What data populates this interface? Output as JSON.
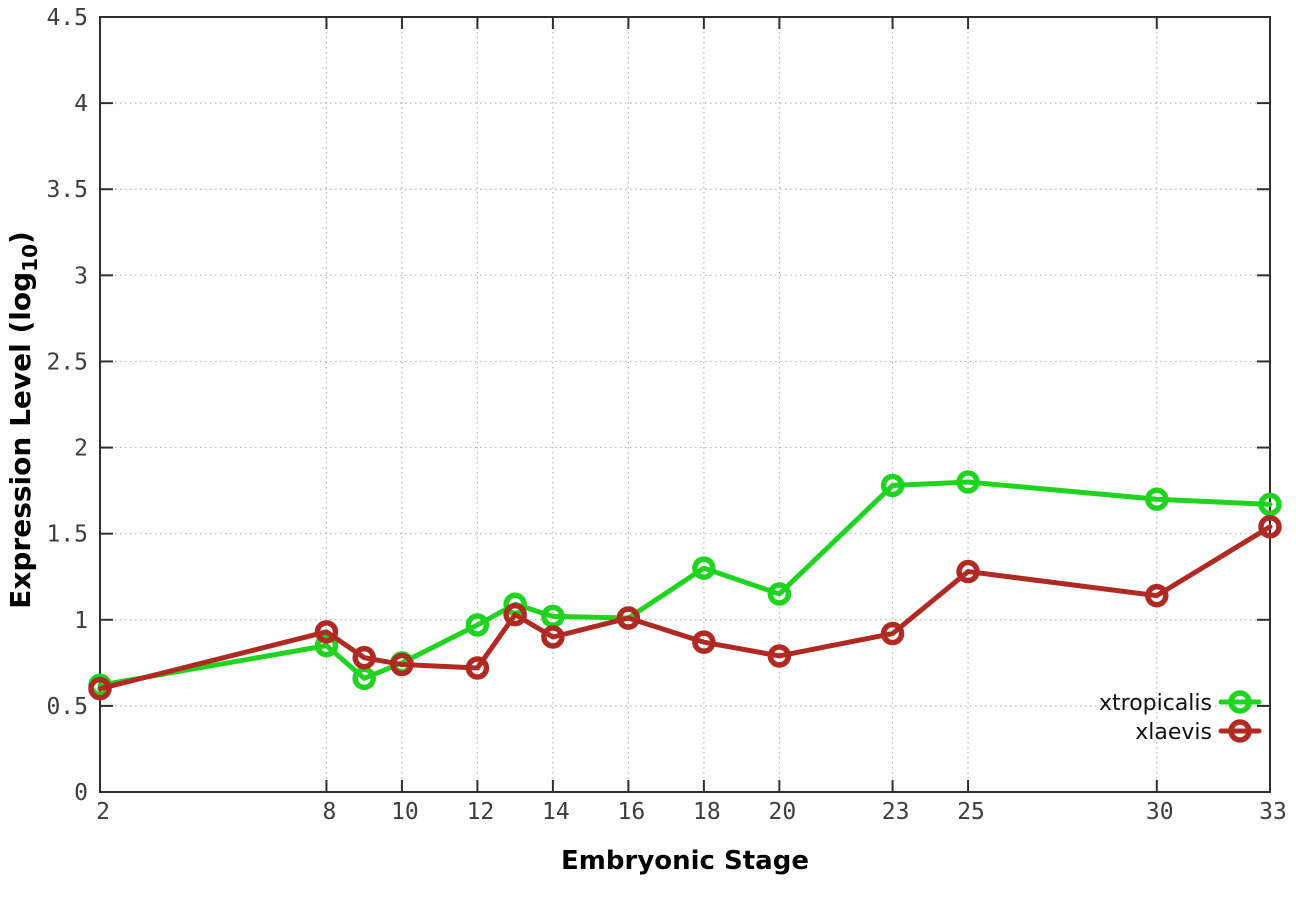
{
  "chart_data": {
    "type": "line",
    "title": "",
    "xlabel": "Embryonic Stage",
    "ylabel": {
      "prefix": "Expression Level (log",
      "sub": "10",
      "suffix": ")"
    },
    "x": [
      2,
      8,
      9,
      10,
      12,
      13,
      14,
      16,
      18,
      20,
      23,
      25,
      30,
      33
    ],
    "series": [
      {
        "name": "xtropicalis",
        "color": "#1ed41e",
        "values": [
          0.62,
          0.85,
          0.66,
          0.75,
          0.97,
          1.09,
          1.02,
          1.01,
          1.3,
          1.15,
          1.78,
          1.8,
          1.7,
          1.67
        ]
      },
      {
        "name": "xlaevis",
        "color": "#b02a23",
        "values": [
          0.6,
          0.93,
          0.78,
          0.74,
          0.72,
          1.03,
          0.9,
          1.01,
          0.87,
          0.79,
          0.92,
          1.28,
          1.14,
          1.54
        ]
      }
    ],
    "xlim": [
      2,
      33
    ],
    "ylim": [
      0,
      4.5
    ],
    "x_ticks": [
      2,
      8,
      10,
      12,
      14,
      16,
      18,
      20,
      23,
      25,
      30,
      33
    ],
    "x_tick_labels": [
      "2",
      "8",
      "10",
      "12",
      "14",
      "16",
      "18",
      "20",
      "23",
      "25",
      "30",
      "33"
    ],
    "y_ticks": [
      0,
      0.5,
      1,
      1.5,
      2,
      2.5,
      3,
      3.5,
      4,
      4.5
    ],
    "y_tick_labels": [
      "0",
      "0.5",
      "1",
      "1.5",
      "2",
      "2.5",
      "3",
      "3.5",
      "4",
      "4.5"
    ],
    "grid": true,
    "legend_position": "bottom-right",
    "marker": "open-circle"
  },
  "styles": {
    "background": "#ffffff",
    "axis_color": "#2e2e2e",
    "grid_color": "#b3b3b3",
    "tick_text_color": "#3d3d3d",
    "title_text_color": "#000000"
  }
}
